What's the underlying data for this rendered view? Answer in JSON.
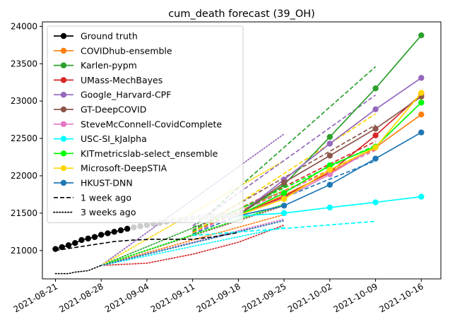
{
  "chart_data": {
    "type": "line",
    "title": "cum_death forecast (39_OH)",
    "xlabel": "",
    "ylabel": "",
    "x_ticks": [
      "2021-08-21",
      "2021-08-28",
      "2021-09-04",
      "2021-09-11",
      "2021-09-18",
      "2021-09-25",
      "2021-10-02",
      "2021-10-09",
      "2021-10-16"
    ],
    "x_range": [
      "2021-08-19",
      "2021-10-19"
    ],
    "y_ticks": [
      21000,
      21500,
      22000,
      22500,
      23000,
      23500,
      24000
    ],
    "ylim": [
      20620,
      24060
    ],
    "grid": false,
    "legend_position": "top-left",
    "ground_truth": {
      "name": "Ground truth",
      "color": "#000000",
      "x": [
        "2021-08-21",
        "2021-08-22",
        "2021-08-23",
        "2021-08-24",
        "2021-08-25",
        "2021-08-26",
        "2021-08-27",
        "2021-08-28",
        "2021-08-29",
        "2021-08-30",
        "2021-08-31",
        "2021-09-01"
      ],
      "y": [
        21020,
        21045,
        21070,
        21100,
        21140,
        21160,
        21180,
        21210,
        21230,
        21250,
        21270,
        21290
      ]
    },
    "gray_history": {
      "color": "#cccccc",
      "x": [
        "2021-09-01",
        "2021-09-02",
        "2021-09-03",
        "2021-09-04",
        "2021-09-05",
        "2021-09-06",
        "2021-09-07",
        "2021-09-08",
        "2021-09-09",
        "2021-09-10",
        "2021-09-11",
        "2021-09-12",
        "2021-09-13",
        "2021-09-14",
        "2021-09-15",
        "2021-09-16",
        "2021-09-17",
        "2021-09-18"
      ],
      "y": [
        21295,
        21310,
        21325,
        21340,
        21355,
        21370,
        21385,
        21400,
        21410,
        21420,
        21430,
        21440,
        21450,
        21455,
        21460,
        21462,
        21465,
        21468
      ]
    },
    "series": [
      {
        "name": "COVIDhub-ensemble",
        "color": "#ff7f0e",
        "x": [
          "2021-09-18",
          "2021-09-25",
          "2021-10-02",
          "2021-10-09",
          "2021-10-16"
        ],
        "y": [
          21470,
          21740,
          22040,
          22380,
          22820
        ],
        "week1_x": [
          "2021-09-11",
          "2021-10-09"
        ],
        "week1_y": [
          21240,
          22360
        ],
        "week3_x": [
          "2021-08-28",
          "2021-09-25"
        ],
        "week3_y": [
          20800,
          21480
        ]
      },
      {
        "name": "Karlen-pypm",
        "color": "#2ca02c",
        "x": [
          "2021-09-18",
          "2021-09-25",
          "2021-10-02",
          "2021-10-09",
          "2021-10-16"
        ],
        "y": [
          21470,
          21880,
          22520,
          23170,
          23880
        ],
        "week1_x": [
          "2021-09-11",
          "2021-10-09"
        ],
        "week1_y": [
          21300,
          23460
        ],
        "week3_x": [
          "2021-08-28",
          "2021-09-25"
        ],
        "week3_y": [
          20800,
          21800
        ]
      },
      {
        "name": "UMass-MechBayes",
        "color": "#d62728",
        "x": [
          "2021-09-18",
          "2021-09-25",
          "2021-10-02",
          "2021-10-09",
          "2021-10-16"
        ],
        "y": [
          21470,
          21720,
          22050,
          22540,
          23090
        ],
        "week1_x": [
          "2021-09-11",
          "2021-10-09"
        ],
        "week1_y": [
          21250,
          22460
        ],
        "week3_x": [
          "2021-08-28",
          "2021-09-04",
          "2021-09-11",
          "2021-09-18",
          "2021-09-25"
        ],
        "week3_y": [
          20800,
          20830,
          20950,
          21110,
          21340
        ]
      },
      {
        "name": "Google_Harvard-CPF",
        "color": "#9467bd",
        "x": [
          "2021-09-18",
          "2021-09-25",
          "2021-10-02",
          "2021-10-09",
          "2021-10-16"
        ],
        "y": [
          21470,
          21950,
          22430,
          22890,
          23310
        ],
        "week1_x": [
          "2021-09-11",
          "2021-10-09"
        ],
        "week1_y": [
          21330,
          23080
        ],
        "week3_x": [
          "2021-08-28",
          "2021-09-25"
        ],
        "week3_y": [
          20800,
          22560
        ]
      },
      {
        "name": "GT-DeepCOVID",
        "color": "#8c564b",
        "x": [
          "2021-09-18",
          "2021-09-25",
          "2021-10-02",
          "2021-10-09",
          "2021-10-16"
        ],
        "y": [
          21470,
          21910,
          22270,
          22630,
          23060
        ],
        "week1_x": [
          "2021-09-11",
          "2021-10-09"
        ],
        "week1_y": [
          21270,
          22680
        ],
        "week3_x": [
          "2021-08-28",
          "2021-09-25"
        ],
        "week3_y": [
          20800,
          21600
        ]
      },
      {
        "name": "SteveMcConnell-CovidComplete",
        "color": "#e377c2",
        "x": [
          "2021-09-18",
          "2021-09-25",
          "2021-10-02",
          "2021-10-09",
          "2021-10-16"
        ],
        "y": [
          21470,
          21700,
          22020,
          22390,
          22980
        ],
        "week1_x": [
          "2021-09-11",
          "2021-10-09"
        ],
        "week1_y": [
          21230,
          22340
        ],
        "week3_x": [
          "2021-08-28",
          "2021-09-25"
        ],
        "week3_y": [
          20800,
          21420
        ]
      },
      {
        "name": "USC-SI_kJalpha",
        "color": "#00ffff",
        "x": [
          "2021-09-18",
          "2021-09-25",
          "2021-10-02",
          "2021-10-09",
          "2021-10-16"
        ],
        "y": [
          21460,
          21500,
          21575,
          21645,
          21720
        ],
        "week1_x": [
          "2021-09-11",
          "2021-10-09"
        ],
        "week1_y": [
          21200,
          21390
        ],
        "week3_x": [
          "2021-08-28",
          "2021-09-25"
        ],
        "week3_y": [
          20800,
          21310
        ]
      },
      {
        "name": "KITmetricslab-select_ensemble",
        "color": "#00ff00",
        "x": [
          "2021-09-18",
          "2021-09-25",
          "2021-10-02",
          "2021-10-09",
          "2021-10-16"
        ],
        "y": [
          21470,
          21770,
          22140,
          22390,
          22980
        ],
        "week1_x": [
          "2021-09-11",
          "2021-10-09"
        ],
        "week1_y": [
          21260,
          22410
        ],
        "week3_x": [
          "2021-08-28",
          "2021-09-25"
        ],
        "week3_y": [
          20800,
          21620
        ]
      },
      {
        "name": "Microsoft-DeepSTIA",
        "color": "#ffd700",
        "x": [
          "2021-09-18",
          "2021-09-25",
          "2021-10-02",
          "2021-10-09",
          "2021-10-16"
        ],
        "y": [
          21470,
          21690,
          22080,
          22380,
          23110
        ],
        "week1_x": [
          "2021-09-11",
          "2021-10-09"
        ],
        "week1_y": [
          21230,
          22830
        ],
        "week3_x": [
          "2021-08-28",
          "2021-09-25"
        ],
        "week3_y": [
          20800,
          22200
        ]
      },
      {
        "name": "HKUST-DNN",
        "color": "#1f77b4",
        "x": [
          "2021-09-18",
          "2021-09-25",
          "2021-10-02",
          "2021-10-09",
          "2021-10-16"
        ],
        "y": [
          21465,
          21600,
          21880,
          22230,
          22580
        ],
        "week1_x": [
          "2021-09-11",
          "2021-10-09"
        ],
        "week1_y": [
          21220,
          22200
        ],
        "week3_x": [
          "2021-08-28",
          "2021-09-25"
        ],
        "week3_y": [
          20800,
          21400
        ]
      }
    ],
    "reference_lines": {
      "week1": {
        "name": "1 week ago",
        "color": "#000000",
        "x": [
          "2021-08-21",
          "2021-08-24",
          "2021-08-27",
          "2021-08-30",
          "2021-09-02",
          "2021-09-05",
          "2021-09-08",
          "2021-09-11",
          "2021-09-14",
          "2021-09-18"
        ],
        "y": [
          21000,
          21040,
          21080,
          21120,
          21140,
          21150,
          21150,
          21150,
          21180,
          21240
        ]
      },
      "week3": {
        "name": "3 weeks ago",
        "color": "#000000",
        "x": [
          "2021-08-21",
          "2021-08-23",
          "2021-08-24",
          "2021-08-26",
          "2021-08-28"
        ],
        "y": [
          20690,
          20690,
          20710,
          20730,
          20800
        ]
      }
    },
    "legend_entries": [
      {
        "label": "Ground truth",
        "color": "#000000",
        "style": "marker"
      },
      {
        "label": "COVIDhub-ensemble",
        "color": "#ff7f0e",
        "style": "marker"
      },
      {
        "label": "Karlen-pypm",
        "color": "#2ca02c",
        "style": "marker"
      },
      {
        "label": "UMass-MechBayes",
        "color": "#d62728",
        "style": "marker"
      },
      {
        "label": "Google_Harvard-CPF",
        "color": "#9467bd",
        "style": "marker"
      },
      {
        "label": "GT-DeepCOVID",
        "color": "#8c564b",
        "style": "marker"
      },
      {
        "label": "SteveMcConnell-CovidComplete",
        "color": "#e377c2",
        "style": "marker"
      },
      {
        "label": "USC-SI_kJalpha",
        "color": "#00ffff",
        "style": "marker"
      },
      {
        "label": "KITmetricslab-select_ensemble",
        "color": "#00ff00",
        "style": "marker"
      },
      {
        "label": "Microsoft-DeepSTIA",
        "color": "#ffd700",
        "style": "marker"
      },
      {
        "label": "HKUST-DNN",
        "color": "#1f77b4",
        "style": "marker"
      },
      {
        "label": "1 week ago",
        "color": "#000000",
        "style": "dashed"
      },
      {
        "label": "3 weeks ago",
        "color": "#000000",
        "style": "dotted"
      }
    ]
  }
}
